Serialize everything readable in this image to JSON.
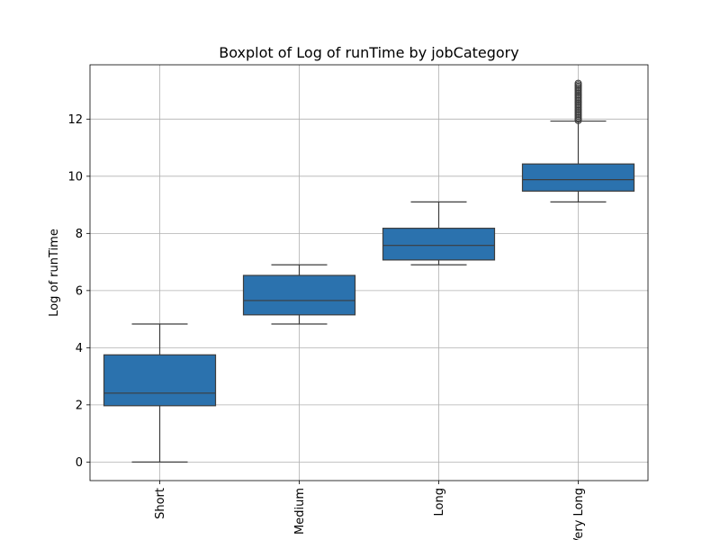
{
  "chart_data": {
    "type": "boxplot",
    "title": "Boxplot of Log of runTime by jobCategory",
    "xlabel": "",
    "ylabel": "Log of runTime",
    "categories": [
      "Short",
      "Medium",
      "Long",
      "Very Long"
    ],
    "yticks": [
      0,
      2,
      4,
      6,
      8,
      10,
      12
    ],
    "ylim": [
      -0.65,
      13.9
    ],
    "grid": true,
    "box_color": "#2b72ae",
    "line_color": "#3d3d3d",
    "boxes": [
      {
        "category": "Short",
        "whisker_low": 0.0,
        "q1": 1.97,
        "median": 2.41,
        "q3": 3.75,
        "whisker_high": 4.83,
        "outliers": []
      },
      {
        "category": "Medium",
        "whisker_low": 4.83,
        "q1": 5.15,
        "median": 5.65,
        "q3": 6.53,
        "whisker_high": 6.9,
        "outliers": []
      },
      {
        "category": "Long",
        "whisker_low": 6.9,
        "q1": 7.07,
        "median": 7.58,
        "q3": 8.18,
        "whisker_high": 9.1,
        "outliers": []
      },
      {
        "category": "Very Long",
        "whisker_low": 9.1,
        "q1": 9.48,
        "median": 9.88,
        "q3": 10.43,
        "whisker_high": 11.93,
        "outliers": [
          11.95,
          12.0,
          12.05,
          12.1,
          12.15,
          12.2,
          12.25,
          12.3,
          12.35,
          12.4,
          12.45,
          12.5,
          12.55,
          12.6,
          12.65,
          12.7,
          12.75,
          12.8,
          12.85,
          12.9,
          12.95,
          13.0,
          13.05,
          13.1,
          13.15,
          13.2,
          13.25
        ]
      }
    ]
  }
}
